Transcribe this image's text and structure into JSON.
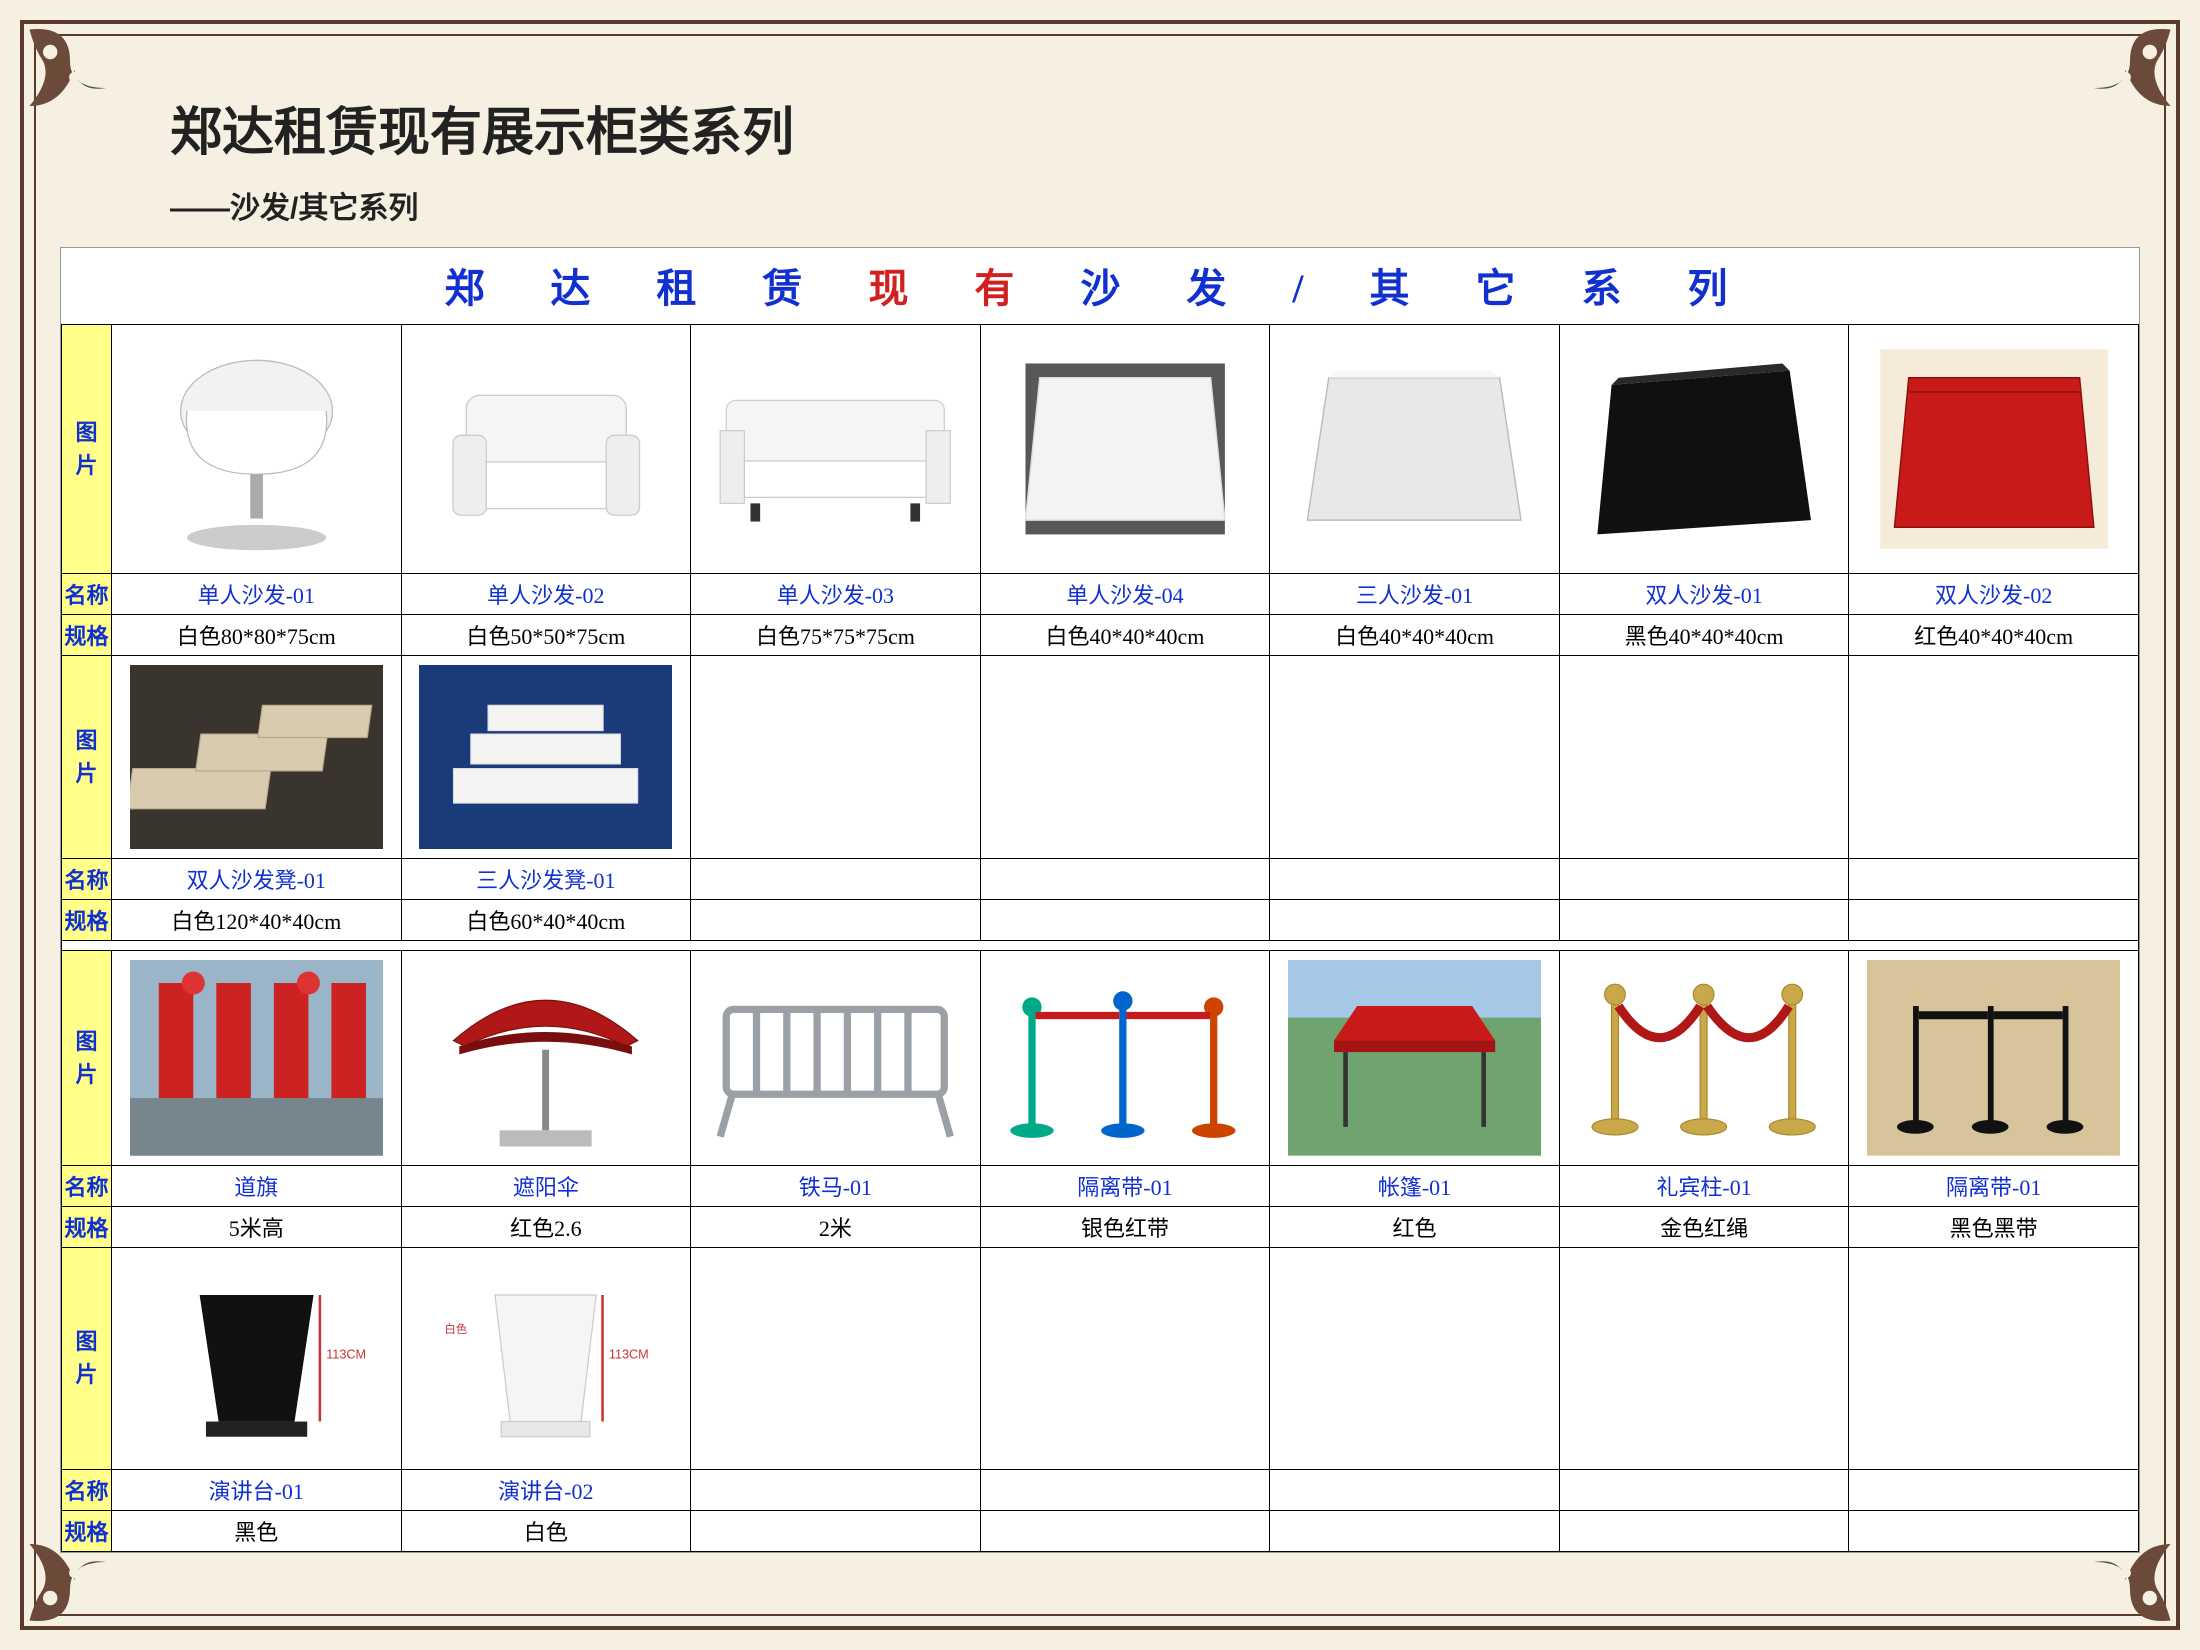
{
  "page": {
    "title": "郑达租赁现有展示柜类系列",
    "subtitle": "——沙发/其它系列",
    "banner_part1": "郑 达 租 赁",
    "banner_part2": "现 有",
    "banner_part3": "沙 发 / 其 它 系 列"
  },
  "labels": {
    "image": "图片",
    "name": "名称",
    "spec": "规格"
  },
  "colors": {
    "page_bg": "#f5f0e1",
    "border": "#5a3a2a",
    "label_bg": "#ffff8a",
    "link_blue": "#1030d0",
    "banner_red": "#d02020",
    "black": "#000000",
    "white": "#ffffff"
  },
  "sections": [
    {
      "rows": [
        {
          "items": [
            {
              "name": "单人沙发-01",
              "spec": "白色80*80*75cm",
              "icon": "tub-chair-white"
            },
            {
              "name": "单人沙发-02",
              "spec": "白色50*50*75cm",
              "icon": "armchair-white"
            },
            {
              "name": "单人沙发-03",
              "spec": "白色75*75*75cm",
              "icon": "loveseat-white"
            },
            {
              "name": "单人沙发-04",
              "spec": "白色40*40*40cm",
              "icon": "cube-white"
            },
            {
              "name": "三人沙发-01",
              "spec": "白色40*40*40cm",
              "icon": "cube-silver"
            },
            {
              "name": "双人沙发-01",
              "spec": "黑色40*40*40cm",
              "icon": "cube-black"
            },
            {
              "name": "双人沙发-02",
              "spec": "红色40*40*40cm",
              "icon": "cube-red"
            }
          ]
        },
        {
          "items": [
            {
              "name": "双人沙发凳-01",
              "spec": "白色120*40*40cm",
              "icon": "benches-beige"
            },
            {
              "name": "三人沙发凳-01",
              "spec": "白色60*40*40cm",
              "icon": "benches-white"
            },
            {
              "name": "",
              "spec": "",
              "icon": ""
            },
            {
              "name": "",
              "spec": "",
              "icon": ""
            },
            {
              "name": "",
              "spec": "",
              "icon": ""
            },
            {
              "name": "",
              "spec": "",
              "icon": ""
            },
            {
              "name": "",
              "spec": "",
              "icon": ""
            }
          ]
        }
      ]
    },
    {
      "rows": [
        {
          "items": [
            {
              "name": "道旗",
              "spec": "5米高",
              "icon": "street-flags"
            },
            {
              "name": "遮阳伞",
              "spec": "红色2.6",
              "icon": "umbrella-red"
            },
            {
              "name": "铁马-01",
              "spec": "2米",
              "icon": "barrier-steel"
            },
            {
              "name": "隔离带-01",
              "spec": "银色红带",
              "icon": "stanchion-red"
            },
            {
              "name": "帐篷-01",
              "spec": "红色",
              "icon": "tent-red"
            },
            {
              "name": "礼宾柱-01",
              "spec": "金色红绳",
              "icon": "rope-stanchion"
            },
            {
              "name": "隔离带-01",
              "spec": "黑色黑带",
              "icon": "stanchion-black"
            }
          ]
        },
        {
          "items": [
            {
              "name": "演讲台-01",
              "spec": "黑色",
              "icon": "podium-black"
            },
            {
              "name": "演讲台-02",
              "spec": "白色",
              "icon": "podium-white"
            },
            {
              "name": "",
              "spec": "",
              "icon": ""
            },
            {
              "name": "",
              "spec": "",
              "icon": ""
            },
            {
              "name": "",
              "spec": "",
              "icon": ""
            },
            {
              "name": "",
              "spec": "",
              "icon": ""
            },
            {
              "name": "",
              "spec": "",
              "icon": ""
            }
          ]
        }
      ]
    }
  ]
}
